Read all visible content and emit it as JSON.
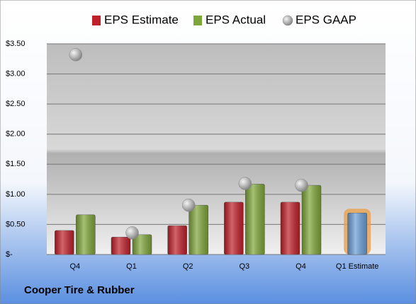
{
  "chart_data": {
    "type": "bar",
    "title": "Cooper Tire & Rubber",
    "categories": [
      "Q4",
      "Q1",
      "Q2",
      "Q3",
      "Q4",
      "Q1 Estimate"
    ],
    "series": [
      {
        "name": "EPS Estimate",
        "type": "bar",
        "color": "#c0202a",
        "values": [
          0.4,
          0.29,
          0.48,
          0.87,
          0.87,
          0.69
        ],
        "colors": [
          "#c0202a",
          "#c0202a",
          "#c0202a",
          "#c0202a",
          "#c0202a",
          "#6a9fd8"
        ]
      },
      {
        "name": "EPS Actual",
        "type": "bar",
        "color": "#7fa63a",
        "values": [
          0.66,
          0.33,
          0.82,
          1.17,
          1.15,
          null
        ]
      },
      {
        "name": "EPS GAAP",
        "type": "scatter",
        "color": "#a0a0a0",
        "values": [
          3.32,
          0.36,
          0.82,
          1.18,
          1.15,
          null
        ]
      }
    ],
    "ylim": [
      0,
      3.5
    ],
    "yticks": [
      {
        "value": 0,
        "label": "$-"
      },
      {
        "value": 0.5,
        "label": "$0.50"
      },
      {
        "value": 1,
        "label": "$1.00"
      },
      {
        "value": 1.5,
        "label": "$1.50"
      },
      {
        "value": 2,
        "label": "$2.00"
      },
      {
        "value": 2.5,
        "label": "$2.50"
      },
      {
        "value": 3,
        "label": "$3.00"
      },
      {
        "value": 3.5,
        "label": "$3.50"
      }
    ],
    "grid": true
  }
}
